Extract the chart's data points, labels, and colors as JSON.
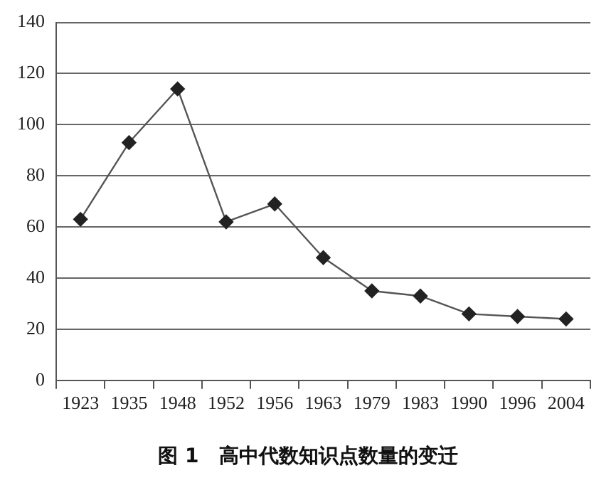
{
  "chart_data": {
    "type": "line",
    "title": "图 1　高中代数知识点数量的变迁",
    "categories": [
      "1923",
      "1935",
      "1948",
      "1952",
      "1956",
      "1963",
      "1979",
      "1983",
      "1990",
      "1996",
      "2004"
    ],
    "series": [
      {
        "color": "#555555",
        "values": [
          63,
          93,
          114,
          62,
          69,
          48,
          35,
          33,
          26,
          25,
          24
        ]
      }
    ],
    "ylim": [
      0,
      140
    ],
    "yticks": [
      0,
      20,
      40,
      60,
      80,
      100,
      120,
      140
    ],
    "grid": "y",
    "marker": "diamond",
    "line_style": "solid",
    "legend": false
  }
}
